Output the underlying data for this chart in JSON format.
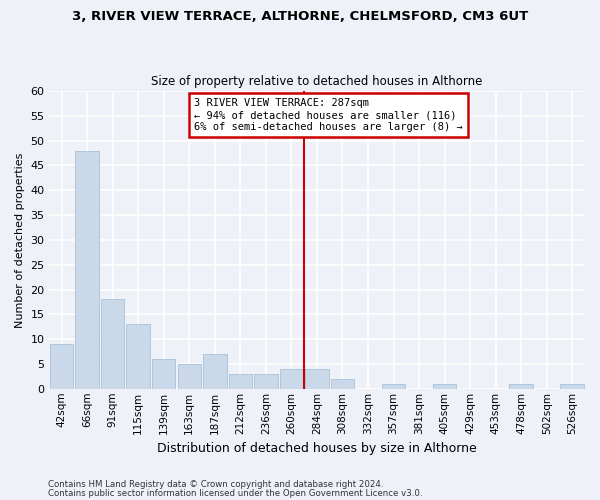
{
  "title1": "3, RIVER VIEW TERRACE, ALTHORNE, CHELMSFORD, CM3 6UT",
  "title2": "Size of property relative to detached houses in Althorne",
  "xlabel": "Distribution of detached houses by size in Althorne",
  "ylabel": "Number of detached properties",
  "categories": [
    "42sqm",
    "66sqm",
    "91sqm",
    "115sqm",
    "139sqm",
    "163sqm",
    "187sqm",
    "212sqm",
    "236sqm",
    "260sqm",
    "284sqm",
    "308sqm",
    "332sqm",
    "357sqm",
    "381sqm",
    "405sqm",
    "429sqm",
    "453sqm",
    "478sqm",
    "502sqm",
    "526sqm"
  ],
  "values": [
    9,
    48,
    18,
    13,
    6,
    5,
    7,
    3,
    3,
    4,
    4,
    2,
    0,
    1,
    0,
    1,
    0,
    0,
    1,
    0,
    1
  ],
  "bar_color": "#c9d9ea",
  "bar_edge_color": "#a8c0d6",
  "background_color": "#eef2f8",
  "grid_color": "#ffffff",
  "annotation_text_line1": "3 RIVER VIEW TERRACE: 287sqm",
  "annotation_text_line2": "← 94% of detached houses are smaller (116)",
  "annotation_text_line3": "6% of semi-detached houses are larger (8) →",
  "annotation_box_color": "#ffffff",
  "annotation_box_edge": "#cc0000",
  "red_line_color": "#cc0000",
  "red_line_bin_index": 10,
  "ylim": [
    0,
    60
  ],
  "yticks": [
    0,
    5,
    10,
    15,
    20,
    25,
    30,
    35,
    40,
    45,
    50,
    55,
    60
  ],
  "footnote1": "Contains HM Land Registry data © Crown copyright and database right 2024.",
  "footnote2": "Contains public sector information licensed under the Open Government Licence v3.0."
}
